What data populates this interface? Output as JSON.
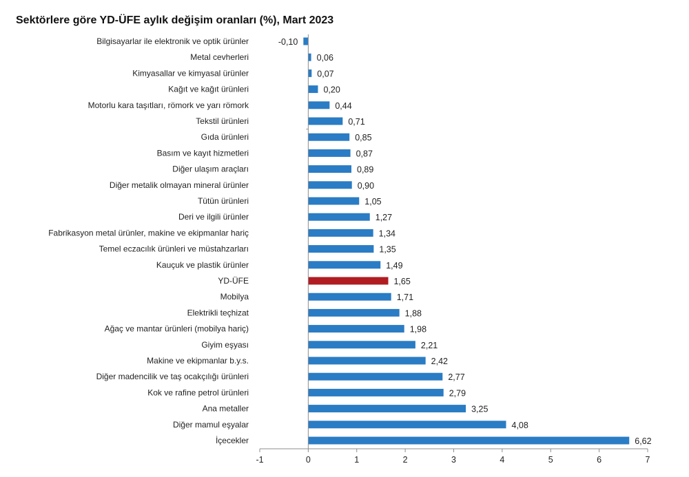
{
  "chart_data": {
    "type": "bar",
    "orientation": "horizontal",
    "title": "Sektörlere göre YD-ÜFE aylık değişim oranları (%), Mart 2023",
    "xlabel": "",
    "ylabel": "",
    "xlim": [
      -1,
      7
    ],
    "xticks": [
      -1,
      0,
      1,
      2,
      3,
      4,
      5,
      6,
      7
    ],
    "grid": false,
    "legend": "none",
    "colors": {
      "default": "#2A7CC4",
      "highlight": "#B01C22"
    },
    "highlight_category": "YD-ÜFE",
    "categories": [
      "Bilgisayarlar ile elektronik ve optik ürünler",
      "Metal cevherleri",
      "Kimyasallar ve kimyasal ürünler",
      "Kağıt ve kağıt ürünleri",
      "Motorlu kara taşıtları, römork ve yarı römork",
      "Tekstil ürünleri",
      "Gıda ürünleri",
      "Basım ve kayıt hizmetleri",
      "Diğer ulaşım araçları",
      "Diğer metalik olmayan mineral ürünler",
      "Tütün ürünleri",
      "Deri ve ilgili ürünler",
      "Fabrikasyon metal ürünler, makine ve ekipmanlar hariç",
      "Temel eczacılık ürünleri ve müstahzarları",
      "Kauçuk ve plastik ürünler",
      "YD-ÜFE",
      "Mobilya",
      "Elektrikli teçhizat",
      "Ağaç ve mantar ürünleri (mobilya hariç)",
      "Giyim eşyası",
      "Makine ve ekipmanlar b.y.s.",
      "Diğer madencilik ve taş ocakçılığı ürünleri",
      "Kok ve rafine petrol ürünleri",
      "Ana metaller",
      "Diğer mamul eşyalar",
      "İçecekler"
    ],
    "values": [
      -0.1,
      0.06,
      0.07,
      0.2,
      0.44,
      0.71,
      0.85,
      0.87,
      0.89,
      0.9,
      1.05,
      1.27,
      1.34,
      1.35,
      1.49,
      1.65,
      1.71,
      1.88,
      1.98,
      2.21,
      2.42,
      2.77,
      2.79,
      3.25,
      4.08,
      6.62
    ],
    "value_labels": [
      "-0,10",
      "0,06",
      "0,07",
      "0,20",
      "0,44",
      "0,71",
      "0,85",
      "0,87",
      "0,89",
      "0,90",
      "1,05",
      "1,27",
      "1,34",
      "1,35",
      "1,49",
      "1,65",
      "1,71",
      "1,88",
      "1,98",
      "2,21",
      "2,42",
      "2,77",
      "2,79",
      "3,25",
      "4,08",
      "6,62"
    ],
    "tick_labels": [
      "-1",
      "0",
      "1",
      "2",
      "3",
      "4",
      "5",
      "6",
      "7"
    ]
  }
}
